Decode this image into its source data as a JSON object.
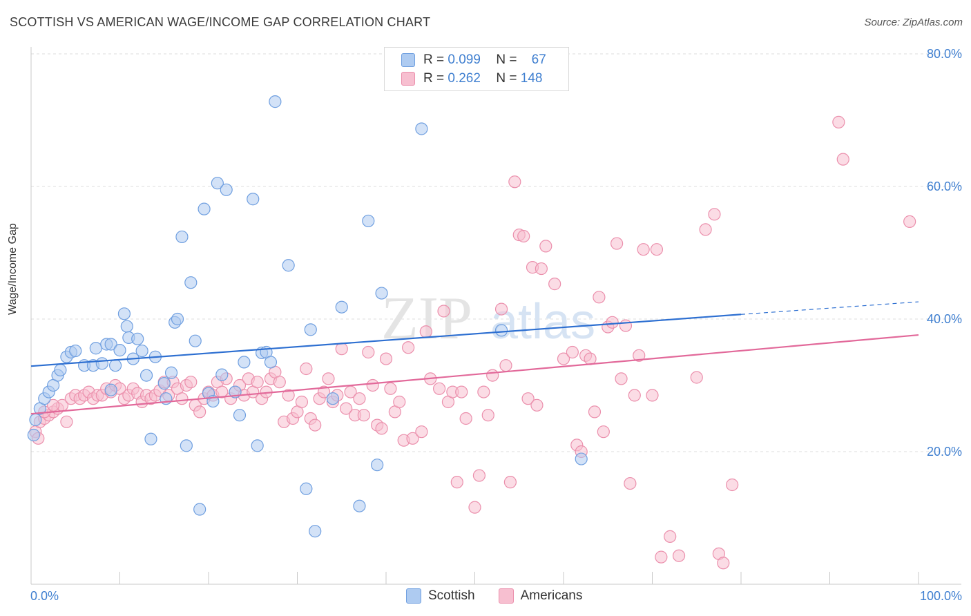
{
  "header": {
    "title": "SCOTTISH VS AMERICAN WAGE/INCOME GAP CORRELATION CHART",
    "source": "Source: ZipAtlas.com"
  },
  "colors": {
    "scottish_fill": "#aecbf1",
    "scottish_stroke": "#6f9fe0",
    "scottish_line": "#2d6fd1",
    "americans_fill": "#f7bfd0",
    "americans_stroke": "#eb8fac",
    "americans_line": "#e2699a",
    "tick_label": "#3f7fd0",
    "grid": "#dddddd"
  },
  "legend": {
    "r_label": "R =",
    "n_label": "N =",
    "series": [
      {
        "name": "Scottish",
        "r": "0.099",
        "n": "67"
      },
      {
        "name": "Americans",
        "r": "0.262",
        "n": "148"
      }
    ]
  },
  "watermark": {
    "zip": "ZIP",
    "atlas": "atlas"
  },
  "chart_data": {
    "type": "scatter",
    "title": "SCOTTISH VS AMERICAN WAGE/INCOME GAP CORRELATION CHART",
    "xlabel": "",
    "ylabel": "Wage/Income Gap",
    "xlim": [
      0,
      100
    ],
    "ylim": [
      0,
      80
    ],
    "x_tick_labels": [
      "0.0%",
      "100.0%"
    ],
    "y_ticks": [
      20,
      40,
      60,
      80
    ],
    "y_tick_labels": [
      "20.0%",
      "40.0%",
      "60.0%",
      "80.0%"
    ],
    "grid": true,
    "legend_position": "top-center",
    "series": [
      {
        "name": "Scottish",
        "trend": {
          "x0": 0,
          "y0": 32.9,
          "x1": 80,
          "y1": 40.7,
          "dashed_to_x": 100,
          "dashed_to_y": 42.6
        },
        "points": [
          [
            0.3,
            22.5
          ],
          [
            0.5,
            24.8
          ],
          [
            1,
            26.5
          ],
          [
            1.5,
            28
          ],
          [
            2,
            29
          ],
          [
            2.5,
            30
          ],
          [
            3,
            31.5
          ],
          [
            3.3,
            32.3
          ],
          [
            4,
            34.3
          ],
          [
            4.5,
            35
          ],
          [
            5,
            35.2
          ],
          [
            6,
            33
          ],
          [
            7,
            33
          ],
          [
            7.3,
            35.6
          ],
          [
            8,
            33.3
          ],
          [
            8.5,
            36.2
          ],
          [
            9,
            36.2
          ],
          [
            9,
            29.3
          ],
          [
            9.5,
            33
          ],
          [
            10,
            35.3
          ],
          [
            10.5,
            40.8
          ],
          [
            10.8,
            38.9
          ],
          [
            11,
            37.2
          ],
          [
            11.5,
            34
          ],
          [
            12,
            37
          ],
          [
            12.5,
            35.2
          ],
          [
            13,
            31.5
          ],
          [
            13.5,
            21.9
          ],
          [
            14,
            34.3
          ],
          [
            15,
            30.3
          ],
          [
            15.2,
            28
          ],
          [
            15.8,
            31.9
          ],
          [
            16.2,
            39.5
          ],
          [
            16.5,
            40
          ],
          [
            17,
            52.4
          ],
          [
            17.5,
            20.9
          ],
          [
            18,
            45.5
          ],
          [
            18.5,
            36.7
          ],
          [
            19,
            11.3
          ],
          [
            19.5,
            56.6
          ],
          [
            20,
            28.8
          ],
          [
            20.5,
            27.6
          ],
          [
            21,
            60.5
          ],
          [
            21.5,
            31.6
          ],
          [
            22,
            59.5
          ],
          [
            23,
            29
          ],
          [
            23.5,
            25.5
          ],
          [
            24,
            33.5
          ],
          [
            25,
            58.1
          ],
          [
            25.5,
            20.9
          ],
          [
            26,
            34.9
          ],
          [
            26.5,
            35
          ],
          [
            27,
            33.5
          ],
          [
            27.5,
            72.8
          ],
          [
            29,
            48.1
          ],
          [
            31,
            14.4
          ],
          [
            31.5,
            38.4
          ],
          [
            32,
            8
          ],
          [
            34,
            28
          ],
          [
            35,
            41.8
          ],
          [
            37,
            11.8
          ],
          [
            38,
            54.8
          ],
          [
            39,
            18
          ],
          [
            39.5,
            43.9
          ],
          [
            44,
            68.7
          ],
          [
            53,
            38.3
          ],
          [
            62,
            18.9
          ]
        ]
      },
      {
        "name": "Americans",
        "trend": {
          "x0": 0,
          "y0": 25.7,
          "x1": 100,
          "y1": 37.6
        },
        "points": [
          [
            0.5,
            23
          ],
          [
            1,
            24.5
          ],
          [
            1.5,
            25
          ],
          [
            2,
            25.5
          ],
          [
            2.5,
            26
          ],
          [
            3,
            26.5
          ],
          [
            3.5,
            27
          ],
          [
            4,
            24.5
          ],
          [
            4.5,
            28
          ],
          [
            5,
            28.5
          ],
          [
            5.5,
            28
          ],
          [
            6,
            28.5
          ],
          [
            6.5,
            29
          ],
          [
            7,
            28
          ],
          [
            7.5,
            28.5
          ],
          [
            8,
            28.5
          ],
          [
            8.5,
            29.5
          ],
          [
            9,
            29
          ],
          [
            9.5,
            30
          ],
          [
            10,
            29.5
          ],
          [
            10.5,
            28
          ],
          [
            11,
            28.5
          ],
          [
            11.5,
            29.5
          ],
          [
            12,
            28.8
          ],
          [
            12.5,
            27.5
          ],
          [
            13,
            28.5
          ],
          [
            13.5,
            28
          ],
          [
            14,
            28.5
          ],
          [
            14.5,
            29.2
          ],
          [
            15,
            30.5
          ],
          [
            15.5,
            28.5
          ],
          [
            16,
            30.5
          ],
          [
            16.5,
            29.5
          ],
          [
            17,
            28
          ],
          [
            17.5,
            30
          ],
          [
            18,
            30.5
          ],
          [
            18.5,
            27
          ],
          [
            19,
            26
          ],
          [
            19.5,
            28
          ],
          [
            20,
            29
          ],
          [
            20.5,
            28.5
          ],
          [
            21,
            30.5
          ],
          [
            21.5,
            29
          ],
          [
            22,
            31
          ],
          [
            22.5,
            28
          ],
          [
            23,
            29
          ],
          [
            23.5,
            30
          ],
          [
            24,
            28.5
          ],
          [
            24.5,
            31
          ],
          [
            25,
            29
          ],
          [
            25.5,
            30.5
          ],
          [
            26,
            28
          ],
          [
            26.5,
            29
          ],
          [
            27,
            31
          ],
          [
            27.5,
            32
          ],
          [
            28,
            30.5
          ],
          [
            28.5,
            24.5
          ],
          [
            29,
            28.5
          ],
          [
            29.5,
            25
          ],
          [
            30,
            26
          ],
          [
            30.5,
            27.5
          ],
          [
            31,
            32.5
          ],
          [
            31.5,
            25
          ],
          [
            32,
            24
          ],
          [
            32.5,
            28
          ],
          [
            33,
            29
          ],
          [
            33.5,
            31
          ],
          [
            34,
            27.5
          ],
          [
            34.5,
            28.5
          ],
          [
            35,
            35.5
          ],
          [
            35.5,
            26.5
          ],
          [
            36,
            29
          ],
          [
            36.5,
            25.5
          ],
          [
            37,
            28
          ],
          [
            37.5,
            25.5
          ],
          [
            38,
            35
          ],
          [
            38.5,
            30
          ],
          [
            39,
            24
          ],
          [
            39.5,
            23.5
          ],
          [
            40,
            34
          ],
          [
            40.5,
            29.5
          ],
          [
            41,
            26
          ],
          [
            41.5,
            27.5
          ],
          [
            42,
            21.7
          ],
          [
            42.5,
            35.7
          ],
          [
            43,
            22
          ],
          [
            44,
            23
          ],
          [
            44.5,
            38.1
          ],
          [
            45,
            31
          ],
          [
            46,
            29.5
          ],
          [
            46.5,
            41.2
          ],
          [
            47,
            27.5
          ],
          [
            47.5,
            29
          ],
          [
            48,
            15.4
          ],
          [
            48.5,
            29
          ],
          [
            49,
            25
          ],
          [
            50,
            11.6
          ],
          [
            50.5,
            16.4
          ],
          [
            51,
            29
          ],
          [
            51.5,
            25.5
          ],
          [
            52,
            31.5
          ],
          [
            53,
            41.5
          ],
          [
            53.5,
            33
          ],
          [
            54,
            15.4
          ],
          [
            54.5,
            60.7
          ],
          [
            55,
            52.7
          ],
          [
            55.5,
            52.5
          ],
          [
            56,
            28
          ],
          [
            56.5,
            47.8
          ],
          [
            57,
            27
          ],
          [
            57.5,
            47.6
          ],
          [
            58,
            51
          ],
          [
            59,
            45.3
          ],
          [
            60,
            34
          ],
          [
            61,
            35
          ],
          [
            61.5,
            21
          ],
          [
            62,
            20
          ],
          [
            62.5,
            34.5
          ],
          [
            63,
            34
          ],
          [
            63.5,
            26
          ],
          [
            64,
            43.3
          ],
          [
            64.5,
            23
          ],
          [
            65,
            38.8
          ],
          [
            65.5,
            39.5
          ],
          [
            66,
            51.4
          ],
          [
            66.5,
            31
          ],
          [
            67,
            39
          ],
          [
            67.5,
            15.2
          ],
          [
            68,
            28.5
          ],
          [
            68.5,
            34.5
          ],
          [
            69,
            50.5
          ],
          [
            70,
            28.5
          ],
          [
            70.5,
            50.5
          ],
          [
            71,
            4.1
          ],
          [
            72,
            7.2
          ],
          [
            73,
            4.3
          ],
          [
            75,
            31.2
          ],
          [
            76,
            53.5
          ],
          [
            77,
            55.8
          ],
          [
            77.5,
            4.6
          ],
          [
            78,
            3.2
          ],
          [
            79,
            15
          ],
          [
            91,
            69.7
          ],
          [
            91.5,
            64.1
          ],
          [
            99,
            54.7
          ],
          [
            1.5,
            26
          ],
          [
            2.5,
            27
          ],
          [
            0.8,
            22
          ]
        ]
      }
    ]
  }
}
